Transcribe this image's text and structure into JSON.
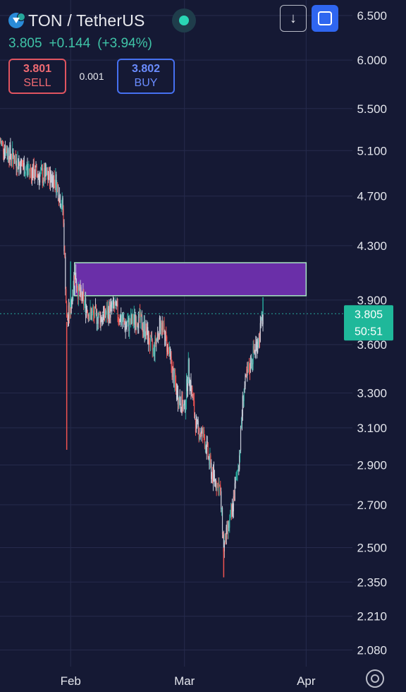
{
  "header": {
    "symbol": "TON / TetherUS",
    "coin_icon": "ton-coin-icon",
    "live_icon": "live-status-dot-icon",
    "last_price": "3.805",
    "change": "+0.144",
    "change_percent": "(+3.94%)",
    "sell_price": "3.801",
    "sell_label": "SELL",
    "spread": "0.001",
    "buy_price": "3.802",
    "buy_label": "BUY"
  },
  "toolbar": {
    "download_icon": "download-arrow-icon",
    "fullscreen_icon": "fullscreen-icon",
    "settings_icon": "settings-icon"
  },
  "colors": {
    "background": "#151934",
    "grid": "#262b4c",
    "up": "#26a69a",
    "down": "#ef5350",
    "candle_light": "#c8ccd8",
    "zone_fill": "#6a2fa8",
    "zone_border": "#a8e6c4",
    "price_label_bg": "#1fb89a"
  },
  "chart_data": {
    "type": "candlestick",
    "pair": "TON / TetherUS",
    "x_ticks": [
      {
        "label": "Feb",
        "date": "2024-02-01"
      },
      {
        "label": "Mar",
        "date": "2024-03-01"
      },
      {
        "label": "Apr",
        "date": "2024-04-01"
      }
    ],
    "x_range": [
      "2024-01-14",
      "2024-04-11"
    ],
    "y_scale": "log",
    "y_range": [
      2.05,
      6.6
    ],
    "y_ticks": [
      "6.500",
      "6.000",
      "5.500",
      "5.100",
      "4.700",
      "4.300",
      "3.900",
      "3.600",
      "3.300",
      "3.100",
      "2.900",
      "2.700",
      "2.500",
      "2.350",
      "2.210",
      "2.080"
    ],
    "grid": true,
    "current_price": {
      "value": 3.805,
      "label": "3.805",
      "countdown": "50:51"
    },
    "zone": {
      "x_start": "2024-02-02",
      "x_end": "2024-04-01",
      "y_low": 3.93,
      "y_high": 4.17
    },
    "path": [
      {
        "date": "2024-01-14",
        "price": 5.18
      },
      {
        "date": "2024-01-17",
        "price": 5.05
      },
      {
        "date": "2024-01-20",
        "price": 4.95
      },
      {
        "date": "2024-01-24",
        "price": 4.88
      },
      {
        "date": "2024-01-28",
        "price": 4.85
      },
      {
        "date": "2024-01-30",
        "price": 4.6
      },
      {
        "date": "2024-01-31",
        "price": 3.75
      },
      {
        "date": "2024-02-01",
        "price": 3.85
      },
      {
        "date": "2024-02-02",
        "price": 4.1
      },
      {
        "date": "2024-02-03",
        "price": 3.95
      },
      {
        "date": "2024-02-06",
        "price": 3.8
      },
      {
        "date": "2024-02-09",
        "price": 3.78
      },
      {
        "date": "2024-02-12",
        "price": 3.85
      },
      {
        "date": "2024-02-15",
        "price": 3.72
      },
      {
        "date": "2024-02-18",
        "price": 3.78
      },
      {
        "date": "2024-02-20",
        "price": 3.7
      },
      {
        "date": "2024-02-22",
        "price": 3.55
      },
      {
        "date": "2024-02-24",
        "price": 3.75
      },
      {
        "date": "2024-02-26",
        "price": 3.55
      },
      {
        "date": "2024-02-28",
        "price": 3.3
      },
      {
        "date": "2024-03-01",
        "price": 3.2
      },
      {
        "date": "2024-03-02",
        "price": 3.45
      },
      {
        "date": "2024-03-04",
        "price": 3.1
      },
      {
        "date": "2024-03-06",
        "price": 3.05
      },
      {
        "date": "2024-03-08",
        "price": 2.85
      },
      {
        "date": "2024-03-10",
        "price": 2.78
      },
      {
        "date": "2024-03-11",
        "price": 2.5
      },
      {
        "date": "2024-03-13",
        "price": 2.65
      },
      {
        "date": "2024-03-14",
        "price": 2.8
      },
      {
        "date": "2024-03-15",
        "price": 2.95
      },
      {
        "date": "2024-03-16",
        "price": 3.3
      },
      {
        "date": "2024-03-18",
        "price": 3.5
      },
      {
        "date": "2024-03-20",
        "price": 3.65
      },
      {
        "date": "2024-03-21",
        "price": 3.8
      }
    ],
    "wicks": [
      {
        "date": "2024-01-31",
        "low": 2.98
      },
      {
        "date": "2024-02-01",
        "high": 4.18
      },
      {
        "date": "2024-03-11",
        "low": 2.37
      },
      {
        "date": "2024-03-21",
        "high": 3.92
      }
    ]
  }
}
